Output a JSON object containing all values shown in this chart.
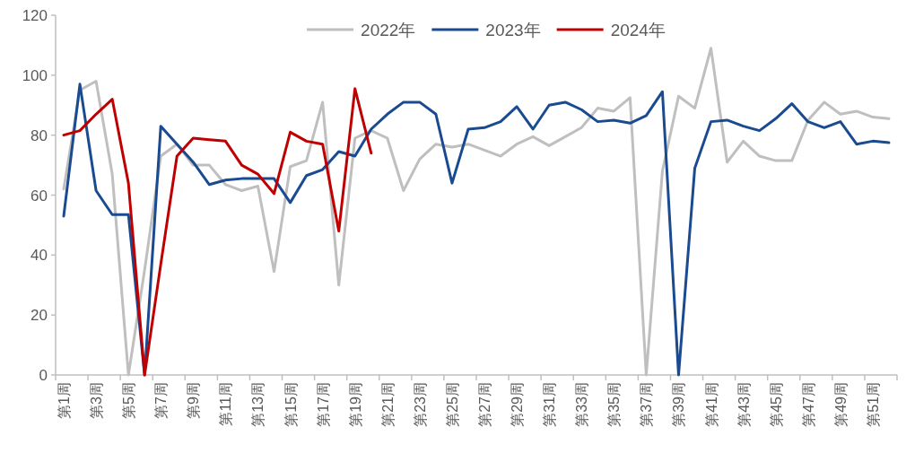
{
  "chart_data": {
    "type": "line",
    "categories": [
      "第1周",
      null,
      "第3周",
      null,
      "第5周",
      null,
      "第7周",
      null,
      "第9周",
      null,
      "第11周",
      null,
      "第13周",
      null,
      "第15周",
      null,
      "第17周",
      null,
      "第19周",
      null,
      "第21周",
      null,
      "第23周",
      null,
      "第25周",
      null,
      "第27周",
      null,
      "第29周",
      null,
      "第31周",
      null,
      "第33周",
      null,
      "第35周",
      null,
      "第37周",
      null,
      "第39周",
      null,
      "第41周",
      null,
      "第43周",
      null,
      "第45周",
      null,
      "第47周",
      null,
      "第49周",
      null,
      "第51周",
      null
    ],
    "series": [
      {
        "name": "2022年",
        "color": "#bfbfbf",
        "values": [
          62,
          95,
          98,
          67,
          0,
          35,
          73,
          77,
          70,
          70,
          63.5,
          61.5,
          63,
          34.5,
          69.5,
          71.5,
          91,
          30,
          79,
          81.5,
          79,
          61.5,
          72,
          77,
          76,
          77,
          75,
          73,
          77,
          79.5,
          76.5,
          79.5,
          82.5,
          89,
          88,
          92.5,
          0,
          68,
          93,
          89,
          109,
          71,
          78,
          73,
          71.5,
          71.5,
          85,
          91,
          87,
          88,
          86,
          85.5
        ]
      },
      {
        "name": "2023年",
        "color": "#1a4a8f",
        "values": [
          53,
          97,
          61.5,
          53.5,
          53.5,
          0,
          83,
          77,
          71,
          63.5,
          65,
          65.5,
          65.5,
          65.5,
          57.5,
          66.5,
          68.5,
          74.5,
          73,
          82,
          87,
          91,
          91,
          87,
          64,
          82,
          82.5,
          84.5,
          89.5,
          82,
          90,
          91,
          88.5,
          84.5,
          85,
          84,
          86.5,
          94.5,
          0,
          69,
          84.5,
          85,
          83,
          81.5,
          85.5,
          90.5,
          84.5,
          82.5,
          84.5,
          77,
          78,
          77.5
        ]
      },
      {
        "name": "2024年",
        "color": "#c00000",
        "values": [
          80,
          81.5,
          87,
          92,
          64,
          0,
          37,
          73,
          79,
          78.5,
          78,
          70,
          67,
          60.5,
          81,
          78,
          77,
          48,
          95.5,
          74,
          null,
          null,
          null,
          null,
          null,
          null,
          null,
          null,
          null,
          null,
          null,
          null,
          null,
          null,
          null,
          null,
          null,
          null,
          null,
          null,
          null,
          null,
          null,
          null,
          null,
          null,
          null,
          null,
          null,
          null,
          null,
          null
        ]
      }
    ],
    "ylim": [
      0,
      120
    ],
    "yticks": [
      0,
      20,
      40,
      60,
      80,
      100,
      120
    ],
    "grid": false,
    "legend": "top",
    "marker": "none",
    "line_style": "solid"
  }
}
